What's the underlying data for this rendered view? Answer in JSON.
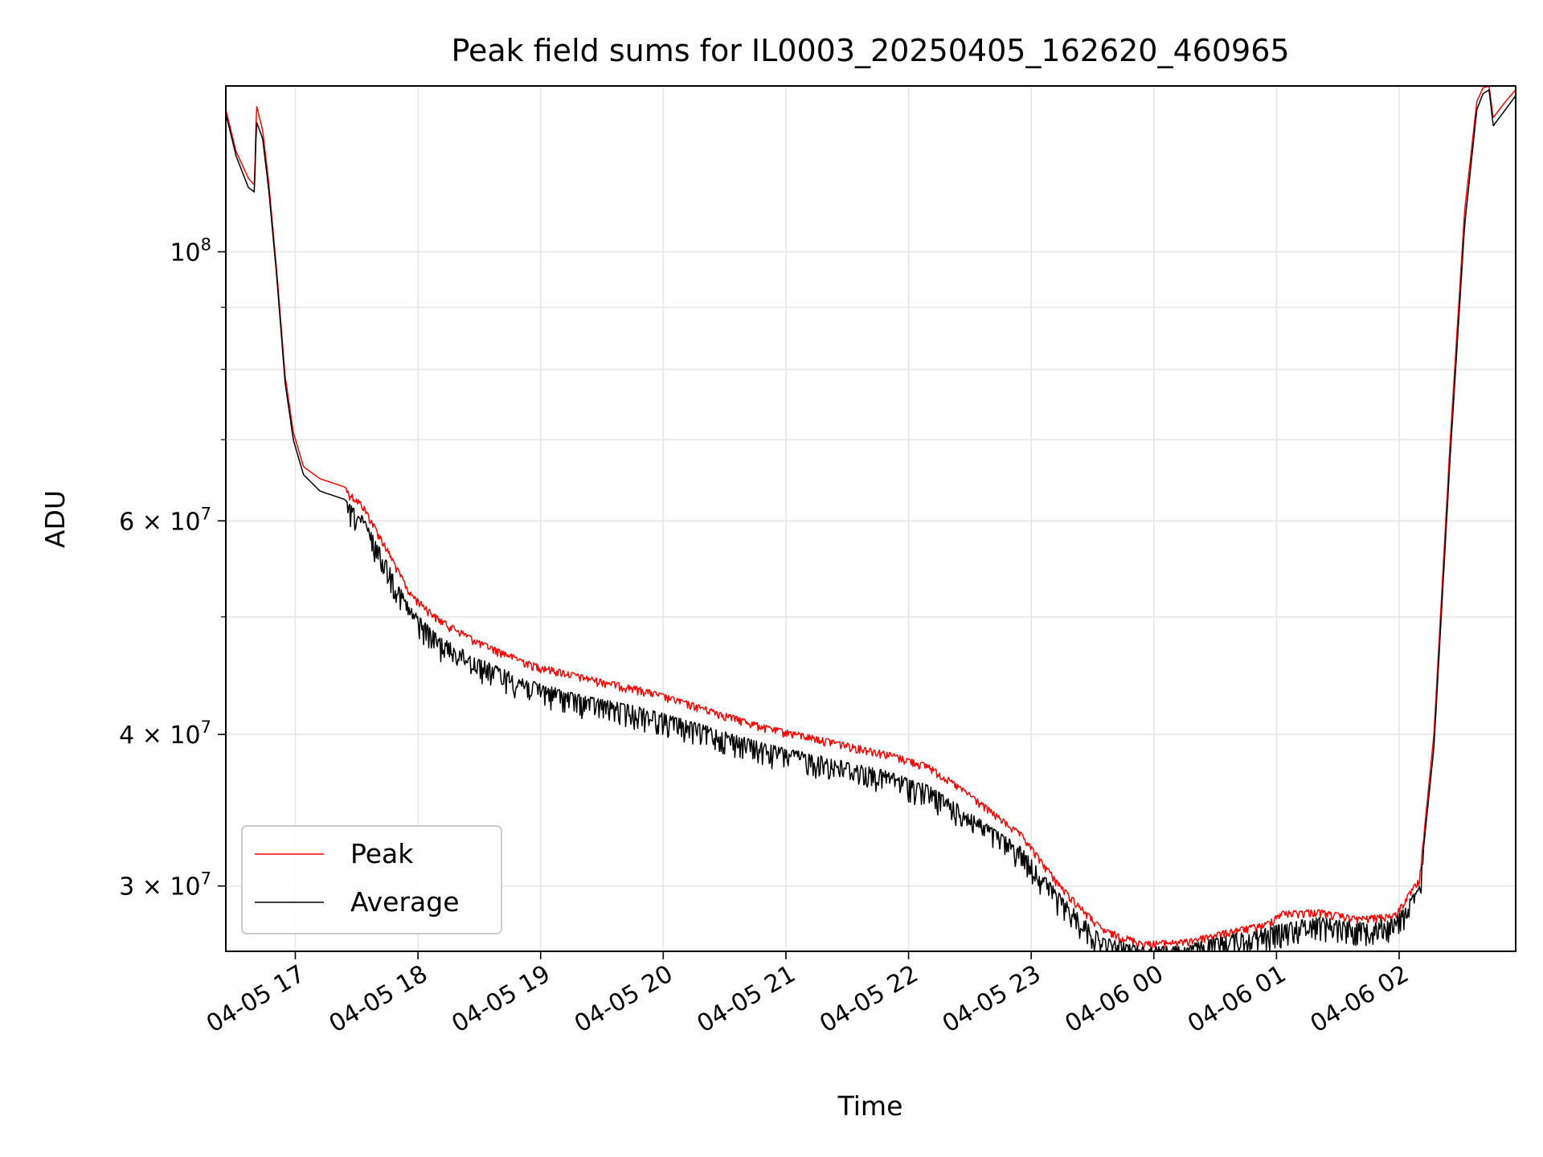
{
  "chart_data": {
    "type": "line",
    "title": "Peak field sums for IL0003_20250405_162620_460965",
    "xlabel": "Time",
    "ylabel": "ADU",
    "yscale": "log",
    "ylim": [
      26500000,
      137000000
    ],
    "xlim": [
      "2025-04-05 16:26",
      "2025-04-06 02:57"
    ],
    "grid": true,
    "legend_position": "lower-left",
    "x_ticks": [
      {
        "t": "2025-04-05 17:00",
        "label": "04-05 17"
      },
      {
        "t": "2025-04-05 18:00",
        "label": "04-05 18"
      },
      {
        "t": "2025-04-05 19:00",
        "label": "04-05 19"
      },
      {
        "t": "2025-04-05 20:00",
        "label": "04-05 20"
      },
      {
        "t": "2025-04-05 21:00",
        "label": "04-05 21"
      },
      {
        "t": "2025-04-05 22:00",
        "label": "04-05 22"
      },
      {
        "t": "2025-04-05 23:00",
        "label": "04-05 23"
      },
      {
        "t": "2025-04-06 00:00",
        "label": "04-06 00"
      },
      {
        "t": "2025-04-06 01:00",
        "label": "04-06 01"
      },
      {
        "t": "2025-04-06 02:00",
        "label": "04-06 02"
      }
    ],
    "y_ticks": [
      {
        "value": 100000000,
        "base": "10",
        "exp": "8"
      },
      {
        "value": 60000000,
        "base": "6 × 10",
        "exp": "7"
      },
      {
        "value": 40000000,
        "base": "4 × 10",
        "exp": "7"
      },
      {
        "value": 30000000,
        "base": "3 × 10",
        "exp": "7"
      }
    ],
    "y_minor_ticks": [
      50000000,
      70000000,
      80000000,
      90000000
    ],
    "series": [
      {
        "name": "Peak",
        "color": "#ff0000",
        "points": [
          [
            "2025-04-05 16:26",
            131000000
          ],
          [
            "2025-04-05 16:31",
            121000000
          ],
          [
            "2025-04-05 16:37",
            115000000
          ],
          [
            "2025-04-05 16:40",
            113500000
          ],
          [
            "2025-04-05 16:41",
            132000000
          ],
          [
            "2025-04-05 16:44",
            126000000
          ],
          [
            "2025-04-05 16:47",
            114000000
          ],
          [
            "2025-04-05 16:51",
            96000000
          ],
          [
            "2025-04-05 16:55",
            79000000
          ],
          [
            "2025-04-05 16:59",
            71000000
          ],
          [
            "2025-04-05 17:04",
            66500000
          ],
          [
            "2025-04-05 17:12",
            65000000
          ],
          [
            "2025-04-05 17:24",
            64000000
          ],
          [
            "2025-04-05 17:33",
            62000000
          ],
          [
            "2025-04-05 17:45",
            57000000
          ],
          [
            "2025-04-05 17:56",
            52500000
          ],
          [
            "2025-04-05 18:10",
            50000000
          ],
          [
            "2025-04-05 18:30",
            47800000
          ],
          [
            "2025-04-05 18:55",
            45900000
          ],
          [
            "2025-04-05 19:20",
            44800000
          ],
          [
            "2025-04-05 19:50",
            43700000
          ],
          [
            "2025-04-05 20:20",
            42200000
          ],
          [
            "2025-04-05 20:50",
            40700000
          ],
          [
            "2025-04-05 21:20",
            39700000
          ],
          [
            "2025-04-05 21:50",
            38700000
          ],
          [
            "2025-04-05 22:10",
            37800000
          ],
          [
            "2025-04-05 22:30",
            35800000
          ],
          [
            "2025-04-05 22:55",
            33200000
          ],
          [
            "2025-04-05 23:15",
            30000000
          ],
          [
            "2025-04-05 23:35",
            27700000
          ],
          [
            "2025-04-05 23:55",
            27000000
          ],
          [
            "2025-04-06 00:15",
            27100000
          ],
          [
            "2025-04-06 00:40",
            27700000
          ],
          [
            "2025-04-06 00:55",
            28000000
          ],
          [
            "2025-04-06 01:02",
            28600000
          ],
          [
            "2025-04-06 01:20",
            28700000
          ],
          [
            "2025-04-06 01:40",
            28300000
          ],
          [
            "2025-04-06 01:58",
            28500000
          ],
          [
            "2025-04-06 02:10",
            30500000
          ],
          [
            "2025-04-06 02:17",
            40000000
          ],
          [
            "2025-04-06 02:25",
            70000000
          ],
          [
            "2025-04-06 02:32",
            108000000
          ],
          [
            "2025-04-06 02:38",
            133000000
          ],
          [
            "2025-04-06 02:41",
            136500000
          ],
          [
            "2025-04-06 02:44",
            137000000
          ],
          [
            "2025-04-06 02:46",
            129000000
          ],
          [
            "2025-04-06 02:52",
            133000000
          ],
          [
            "2025-04-06 02:57",
            136000000
          ]
        ]
      },
      {
        "name": "Average",
        "color": "#000000",
        "points": [
          [
            "2025-04-05 16:26",
            130000000
          ],
          [
            "2025-04-05 16:31",
            120000000
          ],
          [
            "2025-04-05 16:37",
            113000000
          ],
          [
            "2025-04-05 16:40",
            112000000
          ],
          [
            "2025-04-05 16:41",
            128000000
          ],
          [
            "2025-04-05 16:44",
            124000000
          ],
          [
            "2025-04-05 16:47",
            112500000
          ],
          [
            "2025-04-05 16:51",
            95000000
          ],
          [
            "2025-04-05 16:55",
            78000000
          ],
          [
            "2025-04-05 16:59",
            70000000
          ],
          [
            "2025-04-05 17:04",
            65500000
          ],
          [
            "2025-04-05 17:12",
            63500000
          ],
          [
            "2025-04-05 17:24",
            62500000
          ],
          [
            "2025-04-05 17:33",
            60500000
          ],
          [
            "2025-04-05 17:45",
            55500000
          ],
          [
            "2025-04-05 17:56",
            51000000
          ],
          [
            "2025-04-05 18:10",
            48200000
          ],
          [
            "2025-04-05 18:30",
            46200000
          ],
          [
            "2025-04-05 18:55",
            44300000
          ],
          [
            "2025-04-05 19:20",
            43100000
          ],
          [
            "2025-04-05 19:50",
            42100000
          ],
          [
            "2025-04-05 20:20",
            40700000
          ],
          [
            "2025-04-05 20:50",
            39300000
          ],
          [
            "2025-04-05 21:20",
            38300000
          ],
          [
            "2025-04-05 21:50",
            37300000
          ],
          [
            "2025-04-05 22:10",
            36300000
          ],
          [
            "2025-04-05 22:30",
            34500000
          ],
          [
            "2025-04-05 22:55",
            32300000
          ],
          [
            "2025-04-05 23:15",
            29400000
          ],
          [
            "2025-04-05 23:35",
            27200000
          ],
          [
            "2025-04-05 23:55",
            26700000
          ],
          [
            "2025-04-06 00:15",
            26800000
          ],
          [
            "2025-04-06 00:40",
            27400000
          ],
          [
            "2025-04-06 00:55",
            27700000
          ],
          [
            "2025-04-06 01:02",
            27900000
          ],
          [
            "2025-04-06 01:20",
            28300000
          ],
          [
            "2025-04-06 01:40",
            28000000
          ],
          [
            "2025-04-06 01:58",
            28200000
          ],
          [
            "2025-04-06 02:10",
            30000000
          ],
          [
            "2025-04-06 02:17",
            39000000
          ],
          [
            "2025-04-06 02:25",
            68000000
          ],
          [
            "2025-04-06 02:32",
            105000000
          ],
          [
            "2025-04-06 02:38",
            131000000
          ],
          [
            "2025-04-06 02:41",
            135000000
          ],
          [
            "2025-04-06 02:44",
            136000000
          ],
          [
            "2025-04-06 02:46",
            127000000
          ],
          [
            "2025-04-06 02:52",
            131000000
          ],
          [
            "2025-04-06 02:57",
            134500000
          ]
        ]
      }
    ],
    "noise": {
      "window": [
        "2025-04-05 17:25",
        "2025-04-06 02:12"
      ],
      "average_dip_fraction": 0.045
    }
  }
}
